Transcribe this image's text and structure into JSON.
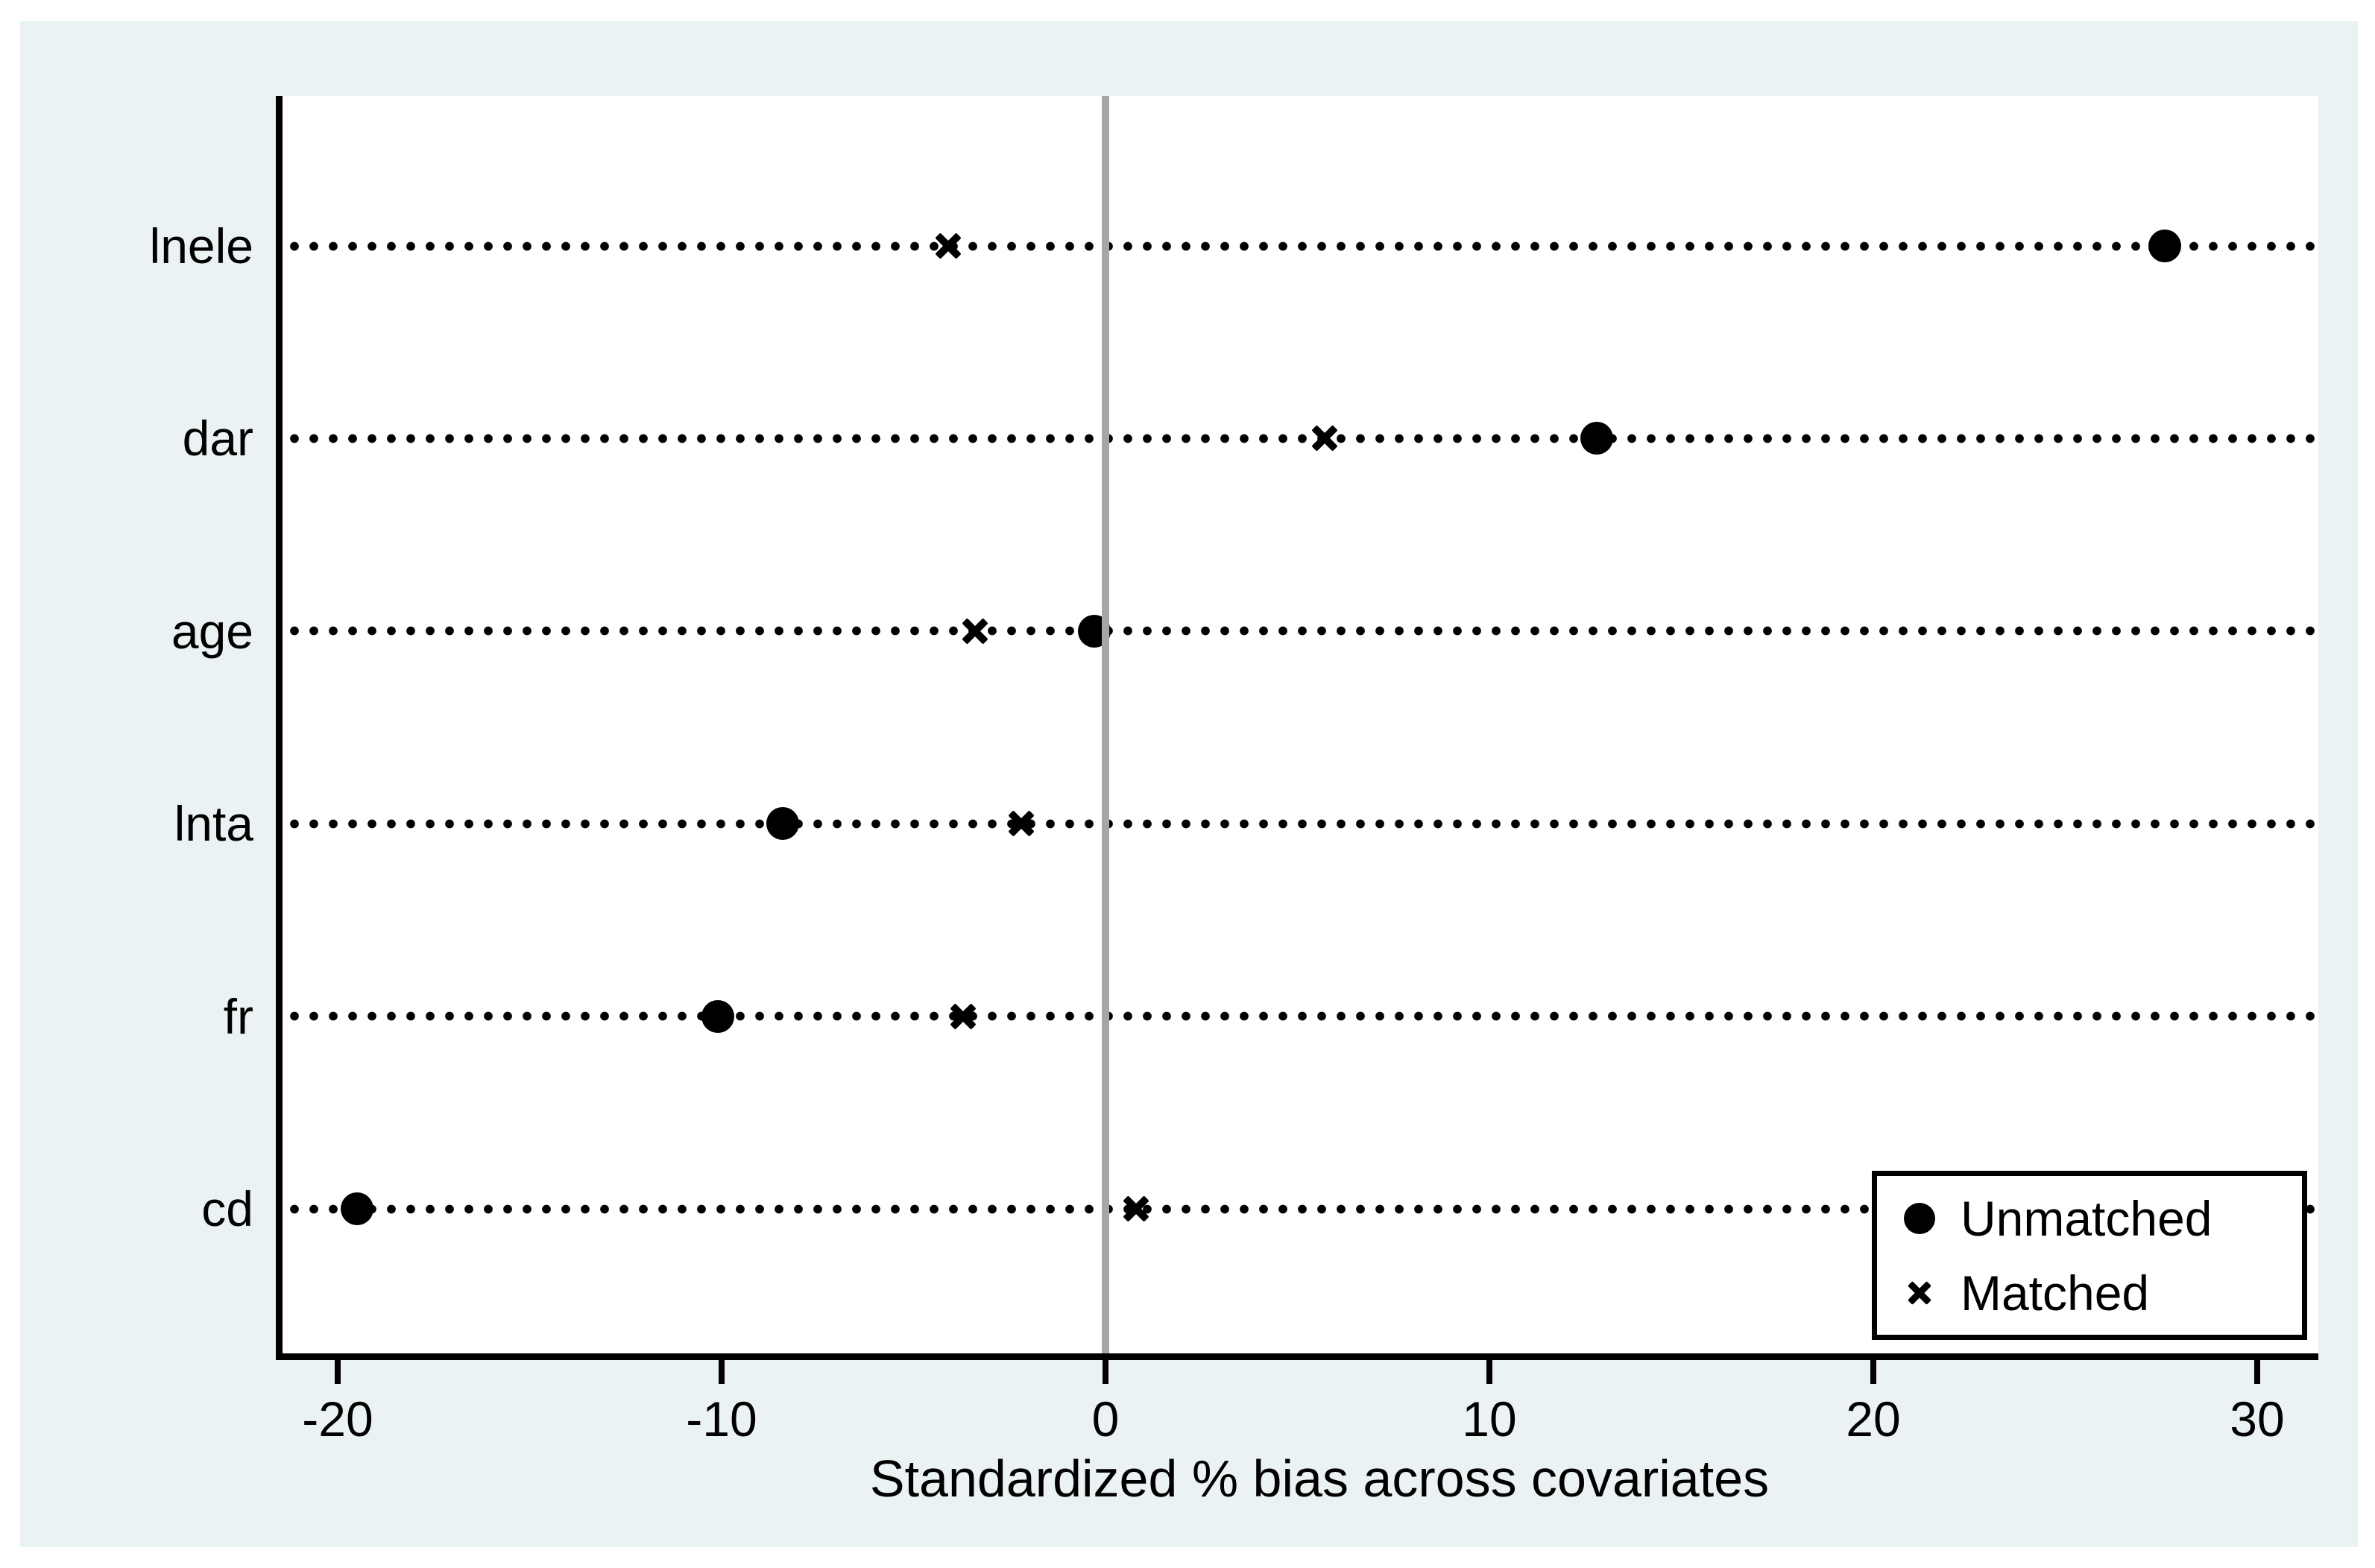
{
  "chart_data": {
    "type": "scatter",
    "title": "",
    "xlabel": "Standardized % bias across covariates",
    "ylabel": "",
    "categories": [
      "lnele",
      "dar",
      "age",
      "lnta",
      "fr",
      "cd"
    ],
    "series": [
      {
        "name": "Unmatched",
        "marker": "circle",
        "values": [
          27.6,
          12.8,
          -0.3,
          -8.4,
          -10.1,
          -19.5
        ]
      },
      {
        "name": "Matched",
        "marker": "x",
        "values": [
          -4.1,
          5.7,
          -3.4,
          -2.2,
          -3.7,
          0.8
        ]
      }
    ],
    "x_ticks": [
      -20,
      -10,
      0,
      10,
      20,
      30
    ],
    "xlim": [
      -21.5,
      31.6
    ],
    "zero_reference_line": true,
    "grid": "horizontal dotted leader line per category",
    "legend_position": "bottom-right",
    "colors": {
      "figure_background": "#eaf2f3",
      "plot_background": "#ffffff",
      "marker": "#000000",
      "zero_line": "#a6a6a6",
      "axis": "#000000"
    }
  },
  "legend": {
    "items": [
      {
        "label": "Unmatched",
        "marker": "circle"
      },
      {
        "label": "Matched",
        "marker": "x"
      }
    ]
  }
}
